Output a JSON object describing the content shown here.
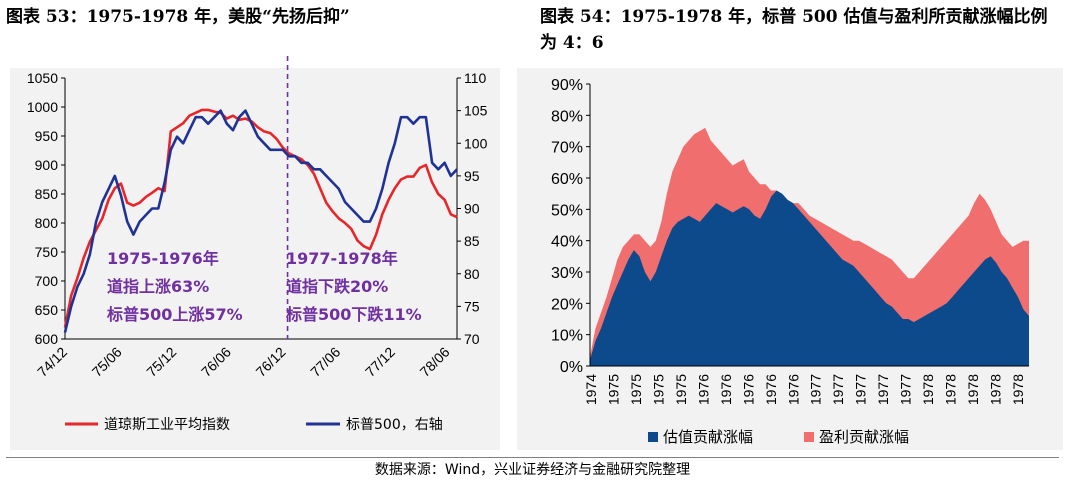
{
  "left_title": "图表 53：1975-1978 年，美股“先扬后抑”",
  "right_title": "图表 54：1975-1978 年，标普 500 估值与盈利所贡献涨幅比例为 4：6",
  "source": "数据来源：Wind，兴业证券经济与金融研究院整理",
  "colors": {
    "red": "#e8262a",
    "blue": "#1f3296",
    "purple": "#7030a0",
    "navy": "#0d4a8c",
    "salmon": "#f06e6e"
  },
  "chart_data": [
    {
      "type": "line",
      "x_ticks": [
        "74/12",
        "75/06",
        "75/12",
        "76/06",
        "76/12",
        "77/06",
        "77/12",
        "78/06"
      ],
      "y_left": {
        "lim": [
          600,
          1050
        ],
        "ticks": [
          600,
          650,
          700,
          750,
          800,
          850,
          900,
          950,
          1000,
          1050
        ]
      },
      "y_right": {
        "lim": [
          70,
          110
        ],
        "ticks": [
          70,
          75,
          80,
          85,
          90,
          95,
          100,
          105,
          110
        ]
      },
      "divider_at": "76/12",
      "annotations": [
        [
          "1975-1976年",
          "道指上涨63%",
          "标普500上涨57%"
        ],
        [
          "1977-1978年",
          "道指下跌20%",
          "标普500下跌11%"
        ]
      ],
      "legend": [
        "道琼斯工业平均指数",
        "标普500，右轴"
      ],
      "series": [
        {
          "name": "道琼斯工业平均指数",
          "axis": "left",
          "color": "#e8262a",
          "points": [
            [
              0,
              620
            ],
            [
              1,
              675
            ],
            [
              2,
              705
            ],
            [
              3,
              740
            ],
            [
              4,
              768
            ],
            [
              5,
              788
            ],
            [
              6,
              808
            ],
            [
              7,
              840
            ],
            [
              8,
              860
            ],
            [
              9,
              868
            ],
            [
              10,
              835
            ],
            [
              11,
              830
            ],
            [
              12,
              835
            ],
            [
              13,
              845
            ],
            [
              14,
              852
            ],
            [
              15,
              860
            ],
            [
              16,
              855
            ],
            [
              17,
              958
            ],
            [
              18,
              965
            ],
            [
              19,
              972
            ],
            [
              20,
              985
            ],
            [
              21,
              990
            ],
            [
              22,
              995
            ],
            [
              23,
              995
            ],
            [
              24,
              992
            ],
            [
              25,
              990
            ],
            [
              26,
              980
            ],
            [
              27,
              985
            ],
            [
              28,
              978
            ],
            [
              29,
              980
            ],
            [
              30,
              975
            ],
            [
              31,
              965
            ],
            [
              32,
              958
            ],
            [
              33,
              955
            ],
            [
              34,
              945
            ],
            [
              35,
              930
            ],
            [
              36,
              920
            ],
            [
              37,
              915
            ],
            [
              38,
              910
            ],
            [
              39,
              900
            ],
            [
              40,
              885
            ],
            [
              41,
              860
            ],
            [
              42,
              835
            ],
            [
              43,
              820
            ],
            [
              44,
              808
            ],
            [
              45,
              800
            ],
            [
              46,
              790
            ],
            [
              47,
              770
            ],
            [
              48,
              760
            ],
            [
              49,
              755
            ],
            [
              50,
              780
            ],
            [
              51,
              815
            ],
            [
              52,
              840
            ],
            [
              53,
              860
            ],
            [
              54,
              875
            ],
            [
              55,
              880
            ],
            [
              56,
              880
            ],
            [
              57,
              895
            ],
            [
              58,
              900
            ],
            [
              59,
              870
            ],
            [
              60,
              850
            ],
            [
              61,
              840
            ],
            [
              62,
              815
            ],
            [
              63,
              810
            ]
          ]
        },
        {
          "name": "标普500，右轴",
          "axis": "right",
          "color": "#1f3296",
          "points": [
            [
              0,
              71
            ],
            [
              1,
              75
            ],
            [
              2,
              78
            ],
            [
              3,
              80
            ],
            [
              4,
              83
            ],
            [
              5,
              88
            ],
            [
              6,
              91
            ],
            [
              7,
              93
            ],
            [
              8,
              95
            ],
            [
              9,
              92
            ],
            [
              10,
              88
            ],
            [
              11,
              86
            ],
            [
              12,
              88
            ],
            [
              13,
              89
            ],
            [
              14,
              90
            ],
            [
              15,
              90
            ],
            [
              16,
              94
            ],
            [
              17,
              99
            ],
            [
              18,
              101
            ],
            [
              19,
              100
            ],
            [
              20,
              102
            ],
            [
              21,
              104
            ],
            [
              22,
              104
            ],
            [
              23,
              103
            ],
            [
              24,
              104
            ],
            [
              25,
              105
            ],
            [
              26,
              103
            ],
            [
              27,
              102
            ],
            [
              28,
              104
            ],
            [
              29,
              105
            ],
            [
              30,
              103
            ],
            [
              31,
              101
            ],
            [
              32,
              100
            ],
            [
              33,
              99
            ],
            [
              34,
              99
            ],
            [
              35,
              99
            ],
            [
              36,
              98
            ],
            [
              37,
              98
            ],
            [
              38,
              97
            ],
            [
              39,
              97
            ],
            [
              40,
              96
            ],
            [
              41,
              96
            ],
            [
              42,
              95
            ],
            [
              43,
              94
            ],
            [
              44,
              93
            ],
            [
              45,
              91
            ],
            [
              46,
              90
            ],
            [
              47,
              89
            ],
            [
              48,
              88
            ],
            [
              49,
              88
            ],
            [
              50,
              90
            ],
            [
              51,
              93
            ],
            [
              52,
              97
            ],
            [
              53,
              100
            ],
            [
              54,
              104
            ],
            [
              55,
              104
            ],
            [
              56,
              103
            ],
            [
              57,
              104
            ],
            [
              58,
              104
            ],
            [
              59,
              97
            ],
            [
              60,
              96
            ],
            [
              61,
              97
            ],
            [
              62,
              95
            ],
            [
              63,
              96
            ]
          ]
        }
      ]
    },
    {
      "type": "area",
      "x_ticks": [
        "1974",
        "1975",
        "1975",
        "1975",
        "1975",
        "1976",
        "1976",
        "1976",
        "1976",
        "1976",
        "1977",
        "1977",
        "1977",
        "1977",
        "1977",
        "1978",
        "1978",
        "1978",
        "1978",
        "1978"
      ],
      "y": {
        "lim": [
          0,
          90
        ],
        "ticks": [
          "0%",
          "10%",
          "20%",
          "30%",
          "40%",
          "50%",
          "60%",
          "70%",
          "80%",
          "90%"
        ]
      },
      "legend": [
        "估值贡献涨幅",
        "盈利贡献涨幅"
      ],
      "series": [
        {
          "name": "估值贡献涨幅",
          "color": "#0d4a8c",
          "values": [
            2,
            8,
            12,
            17,
            22,
            26,
            30,
            34,
            37,
            35,
            30,
            27,
            30,
            35,
            40,
            44,
            46,
            47,
            48,
            47,
            46,
            48,
            50,
            52,
            51,
            50,
            49,
            50,
            51,
            50,
            48,
            47,
            50,
            54,
            56,
            55,
            53,
            52,
            50,
            48,
            46,
            44,
            42,
            40,
            38,
            36,
            34,
            33,
            32,
            30,
            28,
            26,
            24,
            22,
            20,
            19,
            17,
            15,
            15,
            14,
            15,
            16,
            17,
            18,
            19,
            20,
            22,
            24,
            26,
            28,
            30,
            32,
            34,
            35,
            33,
            30,
            28,
            25,
            22,
            18,
            16
          ]
        },
        {
          "name": "盈利贡献涨幅",
          "color": "#f06e6e",
          "values": [
            3,
            12,
            17,
            22,
            28,
            34,
            38,
            40,
            42,
            42,
            40,
            38,
            40,
            46,
            55,
            62,
            66,
            70,
            72,
            74,
            75,
            76,
            72,
            70,
            68,
            66,
            64,
            65,
            66,
            62,
            60,
            58,
            58,
            56,
            56,
            55,
            53,
            52,
            52,
            50,
            48,
            47,
            46,
            45,
            44,
            43,
            42,
            41,
            40,
            40,
            39,
            38,
            37,
            36,
            35,
            34,
            32,
            30,
            28,
            28,
            30,
            32,
            34,
            36,
            38,
            40,
            42,
            44,
            46,
            48,
            52,
            55,
            53,
            50,
            46,
            42,
            40,
            38,
            39,
            40,
            40
          ]
        }
      ]
    }
  ]
}
